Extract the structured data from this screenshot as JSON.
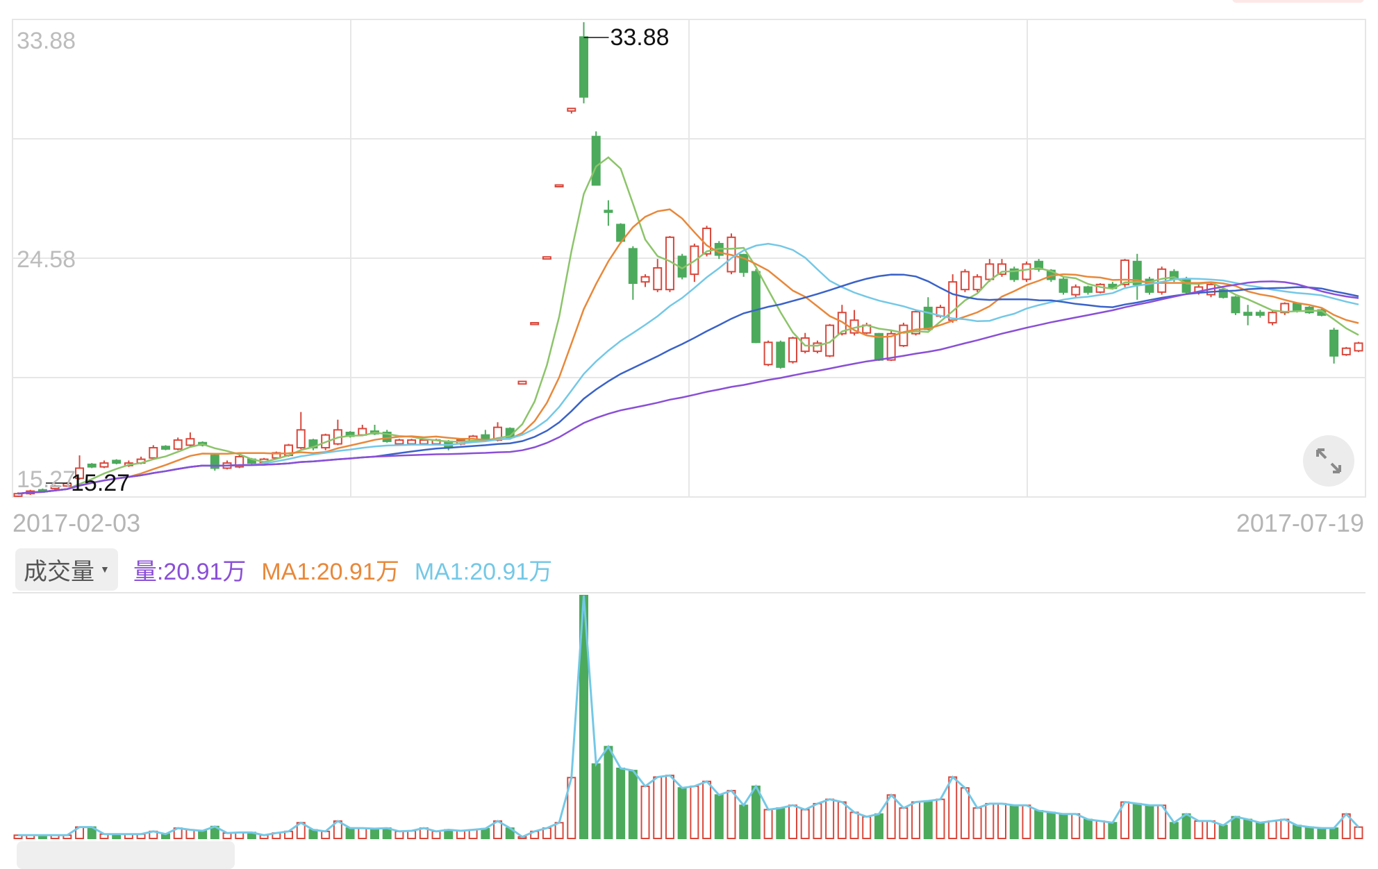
{
  "chart_data": {
    "type": "candlestick",
    "price_axis": {
      "ticks": [
        "33.88",
        "24.58",
        "15.27"
      ],
      "ylim": [
        15.27,
        33.88
      ]
    },
    "x_labels": {
      "start": "2017-02-03",
      "end": "2017-07-19"
    },
    "annotations": {
      "max": "33.88",
      "min": "15.27"
    },
    "ma_periods": [
      5,
      10,
      20,
      30,
      60
    ],
    "ma_colors": [
      "#8cc46a",
      "#e8883a",
      "#74c8e6",
      "#3a62c8",
      "#8a4fd6"
    ],
    "up_color": "#d9473b",
    "down_color": "#4caa5c",
    "candles_ochl_note": "[open, close, high, low]",
    "candles": [
      [
        15.3,
        15.4,
        15.45,
        15.27
      ],
      [
        15.4,
        15.5,
        15.55,
        15.35
      ],
      [
        15.55,
        15.5,
        15.6,
        15.45
      ],
      [
        15.6,
        15.7,
        15.75,
        15.55
      ],
      [
        15.7,
        15.8,
        15.85,
        15.65
      ],
      [
        16.0,
        16.4,
        16.9,
        15.95
      ],
      [
        16.55,
        16.45,
        16.6,
        16.4
      ],
      [
        16.45,
        16.6,
        16.7,
        16.4
      ],
      [
        16.7,
        16.6,
        16.75,
        16.55
      ],
      [
        16.5,
        16.6,
        16.7,
        16.45
      ],
      [
        16.6,
        16.75,
        16.85,
        16.55
      ],
      [
        16.8,
        17.2,
        17.3,
        16.75
      ],
      [
        17.25,
        17.15,
        17.3,
        17.1
      ],
      [
        17.15,
        17.5,
        17.6,
        17.1
      ],
      [
        17.3,
        17.55,
        17.8,
        17.25
      ],
      [
        17.4,
        17.3,
        17.45,
        17.25
      ],
      [
        16.9,
        16.4,
        16.95,
        16.3
      ],
      [
        16.4,
        16.6,
        16.7,
        16.35
      ],
      [
        16.45,
        16.85,
        16.95,
        16.4
      ],
      [
        16.75,
        16.6,
        16.8,
        16.55
      ],
      [
        16.6,
        16.75,
        16.8,
        16.55
      ],
      [
        16.8,
        17.0,
        17.05,
        16.75
      ],
      [
        16.9,
        17.3,
        17.35,
        16.85
      ],
      [
        17.2,
        17.9,
        18.6,
        17.15
      ],
      [
        17.5,
        17.2,
        17.55,
        17.1
      ],
      [
        17.2,
        17.7,
        17.75,
        17.1
      ],
      [
        17.35,
        17.9,
        18.3,
        17.3
      ],
      [
        17.8,
        17.65,
        17.85,
        17.6
      ],
      [
        17.7,
        17.95,
        18.1,
        17.65
      ],
      [
        17.85,
        17.75,
        18.1,
        17.7
      ],
      [
        17.8,
        17.45,
        17.9,
        17.4
      ],
      [
        17.35,
        17.5,
        17.55,
        17.3
      ],
      [
        17.35,
        17.5,
        17.55,
        17.3
      ],
      [
        17.35,
        17.5,
        17.55,
        17.3
      ],
      [
        17.35,
        17.5,
        17.55,
        17.3
      ],
      [
        17.45,
        17.2,
        17.5,
        17.1
      ],
      [
        17.35,
        17.5,
        17.55,
        17.3
      ],
      [
        17.45,
        17.65,
        17.7,
        17.4
      ],
      [
        17.7,
        17.55,
        17.9,
        17.5
      ],
      [
        17.5,
        18.0,
        18.2,
        17.45
      ],
      [
        17.95,
        17.6,
        18.0,
        17.55
      ],
      [
        19.7,
        19.8,
        19.8,
        19.7
      ],
      [
        22.05,
        22.1,
        22.1,
        22.05
      ],
      [
        24.6,
        24.68,
        24.68,
        24.6
      ],
      [
        27.45,
        27.5,
        27.5,
        27.45
      ],
      [
        30.4,
        30.5,
        30.5,
        30.3
      ],
      [
        33.3,
        30.95,
        33.88,
        30.7
      ],
      [
        29.4,
        27.5,
        29.6,
        27.5
      ],
      [
        26.5,
        26.45,
        26.9,
        25.9
      ],
      [
        25.95,
        25.3,
        26.0,
        25.2
      ],
      [
        25.0,
        23.65,
        25.1,
        23.0
      ],
      [
        23.7,
        23.9,
        24.0,
        23.5
      ],
      [
        23.4,
        24.25,
        24.6,
        23.3
      ],
      [
        23.4,
        25.45,
        25.5,
        23.3
      ],
      [
        24.7,
        23.9,
        24.8,
        23.8
      ],
      [
        24.0,
        25.1,
        25.2,
        23.7
      ],
      [
        24.8,
        25.8,
        25.9,
        24.7
      ],
      [
        25.2,
        24.75,
        25.3,
        24.6
      ],
      [
        24.1,
        25.45,
        25.6,
        24.0
      ],
      [
        24.77,
        24.08,
        24.8,
        23.9
      ],
      [
        24.1,
        21.33,
        24.2,
        21.3
      ],
      [
        20.46,
        21.33,
        21.4,
        20.4
      ],
      [
        21.33,
        20.36,
        21.4,
        20.3
      ],
      [
        20.57,
        21.5,
        21.55,
        20.5
      ],
      [
        20.98,
        21.5,
        21.7,
        20.9
      ],
      [
        20.98,
        21.3,
        21.4,
        20.9
      ],
      [
        20.8,
        22.0,
        22.05,
        20.75
      ],
      [
        21.67,
        22.5,
        22.8,
        21.6
      ],
      [
        21.7,
        22.2,
        22.6,
        21.6
      ],
      [
        21.7,
        22.0,
        22.1,
        21.65
      ],
      [
        21.67,
        20.64,
        21.7,
        20.6
      ],
      [
        20.64,
        21.67,
        21.8,
        20.6
      ],
      [
        21.2,
        22.0,
        22.1,
        21.15
      ],
      [
        21.67,
        22.53,
        22.6,
        21.6
      ],
      [
        22.7,
        21.84,
        23.1,
        21.8
      ],
      [
        22.36,
        22.7,
        22.8,
        22.3
      ],
      [
        22.2,
        23.7,
        24.0,
        22.1
      ],
      [
        23.4,
        24.1,
        24.2,
        23.3
      ],
      [
        23.4,
        23.9,
        24.0,
        23.3
      ],
      [
        23.8,
        24.4,
        24.6,
        23.7
      ],
      [
        24.0,
        24.4,
        24.6,
        23.9
      ],
      [
        24.2,
        23.8,
        24.3,
        23.7
      ],
      [
        23.8,
        24.4,
        24.5,
        23.7
      ],
      [
        24.5,
        24.2,
        24.6,
        24.1
      ],
      [
        24.15,
        23.8,
        24.2,
        23.7
      ],
      [
        23.8,
        23.3,
        23.9,
        23.2
      ],
      [
        23.2,
        23.5,
        23.6,
        23.1
      ],
      [
        23.5,
        23.3,
        23.55,
        23.2
      ],
      [
        23.3,
        23.6,
        23.65,
        23.25
      ],
      [
        23.6,
        23.45,
        23.7,
        23.4
      ],
      [
        23.6,
        24.55,
        24.6,
        23.5
      ],
      [
        24.5,
        23.6,
        24.8,
        23.0
      ],
      [
        23.8,
        23.3,
        23.9,
        23.2
      ],
      [
        23.3,
        24.2,
        24.3,
        23.2
      ],
      [
        24.1,
        23.8,
        24.2,
        23.7
      ],
      [
        23.8,
        23.3,
        23.9,
        23.2
      ],
      [
        23.3,
        23.5,
        23.6,
        23.2
      ],
      [
        23.2,
        23.6,
        23.7,
        23.1
      ],
      [
        23.4,
        23.1,
        23.45,
        23.05
      ],
      [
        23.1,
        22.5,
        23.15,
        22.4
      ],
      [
        22.5,
        22.4,
        22.8,
        22.0
      ],
      [
        22.5,
        22.4,
        22.6,
        22.3
      ],
      [
        22.1,
        22.5,
        22.55,
        22.0
      ],
      [
        22.5,
        22.85,
        22.9,
        22.4
      ],
      [
        22.85,
        22.6,
        22.9,
        22.5
      ],
      [
        22.7,
        22.5,
        22.75,
        22.45
      ],
      [
        22.6,
        22.4,
        22.65,
        22.35
      ],
      [
        21.8,
        20.8,
        21.9,
        20.5
      ],
      [
        20.85,
        21.1,
        21.15,
        20.8
      ],
      [
        21.0,
        21.3,
        21.35,
        20.95
      ]
    ],
    "volume_unit": "万",
    "volumes": [
      6,
      6,
      6,
      6,
      6,
      21,
      21,
      8,
      8,
      8,
      8,
      13,
      8,
      19,
      16,
      14,
      22,
      10,
      11,
      11,
      6,
      10,
      13,
      29,
      16,
      13,
      32,
      19,
      19,
      18,
      19,
      13,
      14,
      19,
      13,
      16,
      14,
      16,
      18,
      32,
      19,
      3,
      13,
      19,
      29,
      112,
      447,
      137,
      169,
      129,
      125,
      96,
      113,
      116,
      93,
      96,
      105,
      80,
      88,
      61,
      96,
      53,
      56,
      61,
      53,
      64,
      72,
      67,
      48,
      40,
      45,
      80,
      56,
      67,
      69,
      72,
      113,
      93,
      56,
      64,
      64,
      61,
      61,
      51,
      48,
      45,
      45,
      35,
      32,
      29,
      67,
      64,
      61,
      61,
      29,
      45,
      32,
      32,
      24,
      40,
      35,
      29,
      32,
      35,
      24,
      21,
      19,
      19,
      45,
      20.91
    ]
  },
  "volume_panel": {
    "selector_label": "成交量",
    "legend": [
      {
        "text": "量:20.91万",
        "color": "#8a4fd6"
      },
      {
        "text": "MA1:20.91万",
        "color": "#e8883a"
      },
      {
        "text": "MA1:20.91万",
        "color": "#74c8e6"
      }
    ]
  },
  "icons": {
    "expand": "expand-arrows-icon",
    "selector_caret": "caret-down-icon"
  }
}
